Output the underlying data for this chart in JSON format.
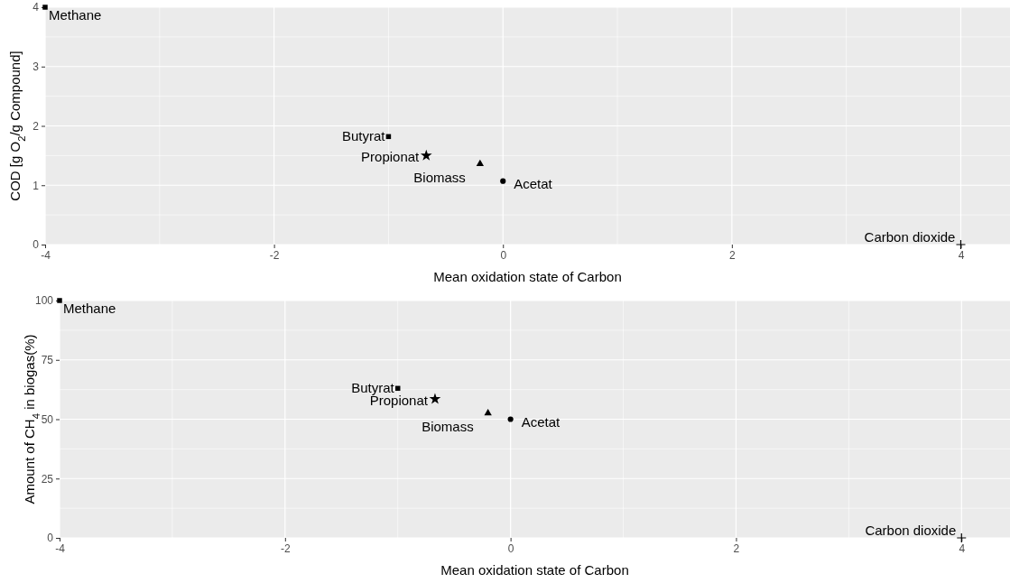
{
  "chart_data": [
    {
      "type": "scatter",
      "xlabel": "Mean oxidation state of Carbon",
      "ylabel": "COD [g O$_{2}$/g Compound]",
      "xlim": [
        -4,
        4.43
      ],
      "ylim": [
        0,
        4
      ],
      "xticks": [
        -4,
        {
          "value": -3,
          "label": null
        },
        -2,
        {
          "value": -1,
          "label": null
        },
        0,
        {
          "value": 1,
          "label": null
        },
        2,
        {
          "value": 3,
          "label": null
        },
        4
      ],
      "yticks": [
        0,
        {
          "value": 0.5,
          "label": null
        },
        1,
        {
          "value": 1.5,
          "label": null
        },
        2,
        {
          "value": 2.5,
          "label": null
        },
        3,
        {
          "value": 3.5,
          "label": null
        },
        4
      ],
      "grid": true,
      "series": [
        {
          "name": "Methane",
          "color": "#000000",
          "marker": "square",
          "x": [
            -4
          ],
          "values": [
            4
          ]
        },
        {
          "name": "Butyrat",
          "color": "#000000",
          "marker": "square",
          "x": [
            -1
          ],
          "values": [
            1.82
          ]
        },
        {
          "name": "Propionat",
          "color": "#000000",
          "marker": "star",
          "x": [
            -0.67
          ],
          "values": [
            1.5
          ]
        },
        {
          "name": "Biomass",
          "color": "#000000",
          "marker": "triangle",
          "x": [
            -0.2
          ],
          "values": [
            1.36
          ]
        },
        {
          "name": "Acetat",
          "color": "#000000",
          "marker": "circle",
          "x": [
            0
          ],
          "values": [
            1.07
          ]
        },
        {
          "name": "Carbon dioxide",
          "color": "#000000",
          "marker": "cross",
          "x": [
            4
          ],
          "values": [
            0
          ]
        }
      ]
    },
    {
      "type": "scatter",
      "xlabel": "Mean oxidation state of Carbon",
      "ylabel": "Amount of CH$_{4}$ in biogas(%)",
      "xlim": [
        -4,
        4.43
      ],
      "ylim": [
        0,
        100
      ],
      "xticks": [
        -4,
        {
          "value": -3,
          "label": null
        },
        -2,
        {
          "value": -1,
          "label": null
        },
        0,
        {
          "value": 1,
          "label": null
        },
        2,
        {
          "value": 3,
          "label": null
        },
        4
      ],
      "yticks": [
        0,
        {
          "value": 12.5,
          "label": null
        },
        25,
        {
          "value": 37.5,
          "label": null
        },
        50,
        {
          "value": 62.5,
          "label": null
        },
        75,
        {
          "value": 87.5,
          "label": null
        },
        100
      ],
      "grid": true,
      "series": [
        {
          "name": "Methane",
          "color": "#000000",
          "marker": "square",
          "x": [
            -4
          ],
          "values": [
            100
          ]
        },
        {
          "name": "Butyrat",
          "color": "#000000",
          "marker": "square",
          "x": [
            -1
          ],
          "values": [
            63
          ]
        },
        {
          "name": "Propionat",
          "color": "#000000",
          "marker": "star",
          "x": [
            -0.67
          ],
          "values": [
            58.5
          ]
        },
        {
          "name": "Biomass",
          "color": "#000000",
          "marker": "triangle",
          "x": [
            -0.2
          ],
          "values": [
            52.5
          ]
        },
        {
          "name": "Acetat",
          "color": "#000000",
          "marker": "circle",
          "x": [
            0
          ],
          "values": [
            50
          ]
        },
        {
          "name": "Carbon dioxide",
          "color": "#000000",
          "marker": "cross",
          "x": [
            4
          ],
          "values": [
            0
          ]
        }
      ]
    }
  ]
}
